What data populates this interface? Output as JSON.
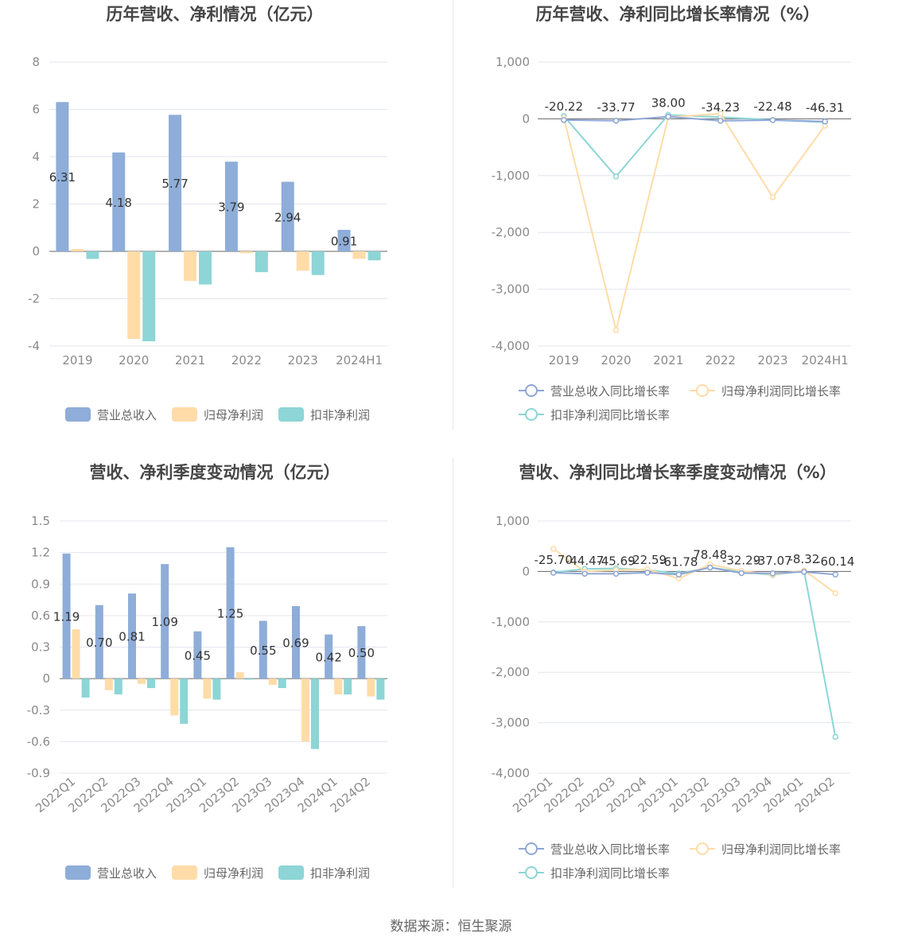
{
  "footer": {
    "source": "数据来源：恒生聚源"
  },
  "colors": {
    "revenue": "#8eadd8",
    "netprofit": "#ffdca8",
    "deducted": "#8dd5d6",
    "line_revenue": "#8ea6d6",
    "line_netprofit": "#ffdca8",
    "line_deducted": "#8dd5d6"
  },
  "chart_data": [
    {
      "type": "bar",
      "title": "历年营收、净利情况（亿元）",
      "categories": [
        "2019",
        "2020",
        "2021",
        "2022",
        "2023",
        "2024H1"
      ],
      "ylim": [
        -4,
        8
      ],
      "yticks": [
        "8",
        "6",
        "4",
        "2",
        "0",
        "-2",
        "-4"
      ],
      "series": [
        {
          "name": "营业总收入",
          "values": [
            6.31,
            4.18,
            5.77,
            3.79,
            2.94,
            0.91
          ],
          "labels": [
            "6.31",
            "4.18",
            "5.77",
            "3.79",
            "2.94",
            "0.91"
          ]
        },
        {
          "name": "归母净利润",
          "values": [
            0.1,
            -3.7,
            -1.25,
            -0.08,
            -0.82,
            -0.32
          ]
        },
        {
          "name": "扣非净利润",
          "values": [
            -0.32,
            -3.8,
            -1.4,
            -0.88,
            -1.0,
            -0.38
          ]
        }
      ]
    },
    {
      "type": "line",
      "title": "历年营收、净利同比增长率情况（%）",
      "categories": [
        "2019",
        "2020",
        "2021",
        "2022",
        "2023",
        "2024H1"
      ],
      "ylim": [
        -4000,
        1000
      ],
      "yticks": [
        "1,000",
        "0",
        "-1,000",
        "-2,000",
        "-3,000",
        "-4,000"
      ],
      "series": [
        {
          "name": "营业总收入同比增长率",
          "values": [
            -20.22,
            -33.77,
            38.0,
            -34.23,
            -22.48,
            -46.31
          ],
          "labels": [
            "-20.22",
            "-33.77",
            "38.00",
            "-34.23",
            "-22.48",
            "-46.31"
          ]
        },
        {
          "name": "归母净利润同比增长率",
          "values": [
            20,
            -3720,
            30,
            90,
            -1380,
            -120
          ]
        },
        {
          "name": "扣非净利润同比增长率",
          "values": [
            50,
            -1015,
            70,
            30,
            -20,
            -60
          ]
        }
      ]
    },
    {
      "type": "bar",
      "title": "营收、净利季度变动情况（亿元）",
      "categories": [
        "2022Q1",
        "2022Q2",
        "2022Q3",
        "2022Q4",
        "2023Q1",
        "2023Q2",
        "2023Q3",
        "2023Q4",
        "2024Q1",
        "2024Q2"
      ],
      "ylim": [
        -0.9,
        1.5
      ],
      "yticks": [
        "1.5",
        "1.2",
        "0.9",
        "0.6",
        "0.3",
        "0",
        "-0.3",
        "-0.6",
        "-0.9"
      ],
      "series": [
        {
          "name": "营业总收入",
          "values": [
            1.19,
            0.7,
            0.81,
            1.09,
            0.45,
            1.25,
            0.55,
            0.69,
            0.42,
            0.5
          ],
          "labels": [
            "1.19",
            "0.70",
            "0.81",
            "1.09",
            "0.45",
            "1.25",
            "0.55",
            "0.69",
            "0.42",
            "0.50"
          ]
        },
        {
          "name": "归母净利润",
          "values": [
            0.47,
            -0.11,
            -0.05,
            -0.35,
            -0.19,
            0.06,
            -0.06,
            -0.6,
            -0.15,
            -0.17
          ]
        },
        {
          "name": "扣非净利润",
          "values": [
            -0.18,
            -0.15,
            -0.09,
            -0.43,
            -0.2,
            -0.01,
            -0.09,
            -0.67,
            -0.15,
            -0.2
          ]
        }
      ]
    },
    {
      "type": "line",
      "title": "营收、净利同比增长率季度变动情况（%）",
      "categories": [
        "2022Q1",
        "2022Q2",
        "2022Q3",
        "2022Q4",
        "2023Q1",
        "2023Q2",
        "2023Q3",
        "2023Q4",
        "2024Q1",
        "2024Q2"
      ],
      "ylim": [
        -4000,
        1000
      ],
      "yticks": [
        "1,000",
        "0",
        "-1,000",
        "-2,000",
        "-3,000",
        "-4,000"
      ],
      "series": [
        {
          "name": "营业总收入同比增长率",
          "values": [
            -25.7,
            -44.47,
            -45.69,
            -22.59,
            -61.78,
            78.48,
            -32.29,
            -37.07,
            -8.32,
            -60.14
          ],
          "labels": [
            "-25.70",
            "-44.47",
            "-45.69",
            "-22.59",
            "-61.78",
            "78.48",
            "-32.29",
            "-37.07",
            "-8.32",
            "-60.14"
          ]
        },
        {
          "name": "归母净利润同比增长率",
          "values": [
            450,
            0,
            30,
            40,
            -140,
            140,
            10,
            -60,
            20,
            -430
          ]
        },
        {
          "name": "扣非净利润同比增长率",
          "values": [
            -20,
            50,
            60,
            30,
            -40,
            80,
            -10,
            -70,
            10,
            -3280
          ]
        }
      ]
    }
  ]
}
